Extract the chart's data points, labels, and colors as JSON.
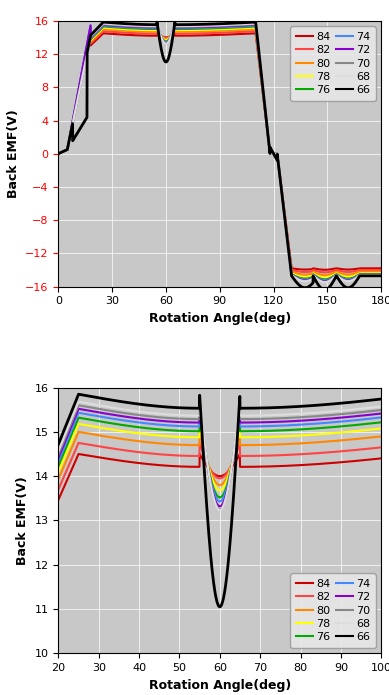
{
  "series_labels": [
    "84",
    "82",
    "80",
    "78",
    "76",
    "74",
    "72",
    "70",
    "68",
    "66"
  ],
  "series_colors": [
    "#cc0000",
    "#ff4444",
    "#ff8800",
    "#ffff00",
    "#00aa00",
    "#4488ff",
    "#8800cc",
    "#888888",
    "#dddddd",
    "#000000"
  ],
  "series_linewidths": [
    1.5,
    1.5,
    1.5,
    1.5,
    1.5,
    1.5,
    1.5,
    1.5,
    1.5,
    2.0
  ],
  "amp_map": {
    "84": 14.5,
    "82": 14.75,
    "80": 15.0,
    "78": 15.18,
    "76": 15.32,
    "74": 15.43,
    "72": 15.52,
    "70": 15.6,
    "68": 15.68,
    "66": 15.85
  },
  "neg_amp_map": {
    "84": 13.8,
    "82": 14.0,
    "80": 14.2,
    "78": 14.4,
    "76": 14.5,
    "74": 14.55,
    "72": 14.58,
    "70": 14.6,
    "68": 14.62,
    "66": 14.7
  },
  "notch_map": {
    "84": 0.5,
    "82": 0.8,
    "80": 1.2,
    "78": 1.5,
    "76": 1.8,
    "74": 2.0,
    "72": 2.2,
    "70": 2.35,
    "68": 2.45,
    "66": 4.8
  },
  "plot1": {
    "xlabel": "Rotation Angle(deg)",
    "ylabel": "Back EMF(V)",
    "xlim": [
      0,
      180
    ],
    "ylim": [
      -16,
      16
    ],
    "xticks": [
      0,
      30,
      60,
      90,
      120,
      150,
      180
    ],
    "yticks": [
      -16,
      -12,
      -8,
      -4,
      0,
      4,
      8,
      12,
      16
    ],
    "bg_color": "#c8c8c8"
  },
  "plot2": {
    "xlabel": "Rotation Angle(deg)",
    "ylabel": "Back EMF(V)",
    "xlim": [
      20,
      100
    ],
    "ylim": [
      10,
      16
    ],
    "xticks": [
      20,
      30,
      40,
      50,
      60,
      70,
      80,
      90,
      100
    ],
    "yticks": [
      10,
      11,
      12,
      13,
      14,
      15,
      16
    ],
    "bg_color": "#c8c8c8"
  }
}
